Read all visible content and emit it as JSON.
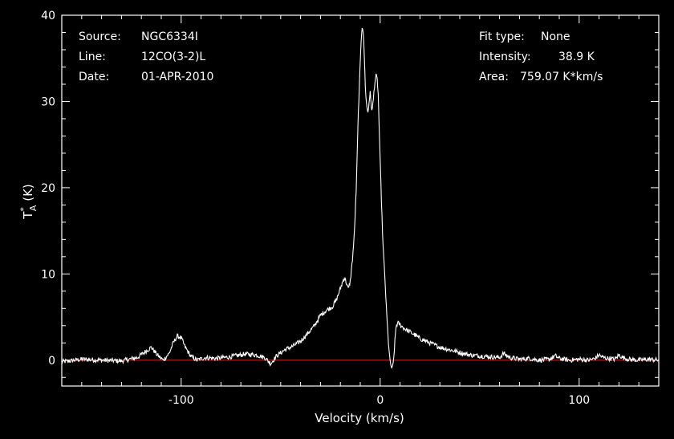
{
  "header": {
    "left": [
      {
        "key": "Source:",
        "value": "NGC6334I"
      },
      {
        "key": "Line:",
        "value": "12CO(3-2)L"
      },
      {
        "key": "Date:",
        "value": "01-APR-2010"
      }
    ],
    "right": [
      {
        "key": "Fit type:",
        "value": "None"
      },
      {
        "key": "Intensity:",
        "value": "38.9 K"
      },
      {
        "key": "Area:",
        "value": "759.07 K*km/s"
      }
    ]
  },
  "colors": {
    "background": "#000000",
    "axes": "#ffffff",
    "trace": "#ffffff",
    "baseline": "#d01010"
  },
  "chart_data": {
    "type": "line",
    "xlabel": "Velocity (km/s)",
    "ylabel": "T*A (K)",
    "xlim": [
      -160,
      140
    ],
    "ylim": [
      -3,
      40
    ],
    "x_ticks": [
      -100,
      0,
      100
    ],
    "x_tick_labels": [
      "-100",
      "0",
      "100"
    ],
    "y_ticks": [
      0,
      10,
      20,
      30,
      40
    ],
    "y_tick_labels": [
      "0",
      "10",
      "20",
      "30",
      "40"
    ],
    "x_minor_step": 10,
    "y_minor_step": 2,
    "grid": false,
    "baseline_y": 0,
    "series": [
      {
        "x": [
          -160,
          -150,
          -140,
          -130,
          -122,
          -118,
          -115,
          -112,
          -109,
          -106,
          -104,
          -102,
          -100,
          -98,
          -95,
          -92,
          -88,
          -82,
          -75,
          -68,
          -62,
          -58,
          -55,
          -52,
          -48,
          -44,
          -40,
          -36,
          -33,
          -30,
          -27,
          -24,
          -22,
          -20,
          -19,
          -18,
          -17,
          -16,
          -15,
          -14,
          -13,
          -12,
          -11,
          -10,
          -9.5,
          -9,
          -8.5,
          -8,
          -7.5,
          -7,
          -6.5,
          -6,
          -5.5,
          -5,
          -4.5,
          -4,
          -3.5,
          -3,
          -2.5,
          -2,
          -1.5,
          -1,
          -0.5,
          0,
          0.5,
          1,
          1.5,
          2,
          2.5,
          3,
          4,
          5,
          6,
          6.5,
          7,
          7.5,
          8,
          9,
          10,
          12,
          14,
          17,
          20,
          25,
          30,
          35,
          40,
          45,
          50,
          55,
          60,
          62,
          65,
          70,
          75,
          80,
          85,
          88,
          90,
          95,
          100,
          105,
          108,
          110,
          112,
          115,
          118,
          120,
          122,
          125,
          130,
          135,
          140
        ],
        "y": [
          -0.2,
          0.1,
          0.0,
          -0.1,
          0.3,
          1.0,
          1.5,
          0.6,
          0.0,
          0.8,
          2.0,
          2.8,
          2.6,
          1.5,
          0.4,
          0.0,
          0.3,
          0.2,
          0.4,
          0.7,
          0.6,
          0.3,
          -0.4,
          0.5,
          1.2,
          1.6,
          2.2,
          3.2,
          4.0,
          5.2,
          5.8,
          6.2,
          7.0,
          8.3,
          9.0,
          9.6,
          9.0,
          8.2,
          9.2,
          11.5,
          14.5,
          20.0,
          28.5,
          34.5,
          37.5,
          38.9,
          38.0,
          35.5,
          32.0,
          30.0,
          29.0,
          28.8,
          30.2,
          31.0,
          29.5,
          29.0,
          30.0,
          31.5,
          32.5,
          33.0,
          32.5,
          31.0,
          27.0,
          23.0,
          19.5,
          16.0,
          13.0,
          11.0,
          9.0,
          6.5,
          2.5,
          -0.3,
          -1.0,
          -0.6,
          0.8,
          2.5,
          4.0,
          4.3,
          4.1,
          3.7,
          3.4,
          3.0,
          2.5,
          2.0,
          1.5,
          1.2,
          0.9,
          0.6,
          0.5,
          0.4,
          0.3,
          0.8,
          0.3,
          0.1,
          0.2,
          0.0,
          0.1,
          0.5,
          0.2,
          0.0,
          0.1,
          0.0,
          0.2,
          0.6,
          0.3,
          0.2,
          0.1,
          0.6,
          0.3,
          0.1,
          0.0,
          0.1,
          0.0
        ]
      }
    ]
  }
}
